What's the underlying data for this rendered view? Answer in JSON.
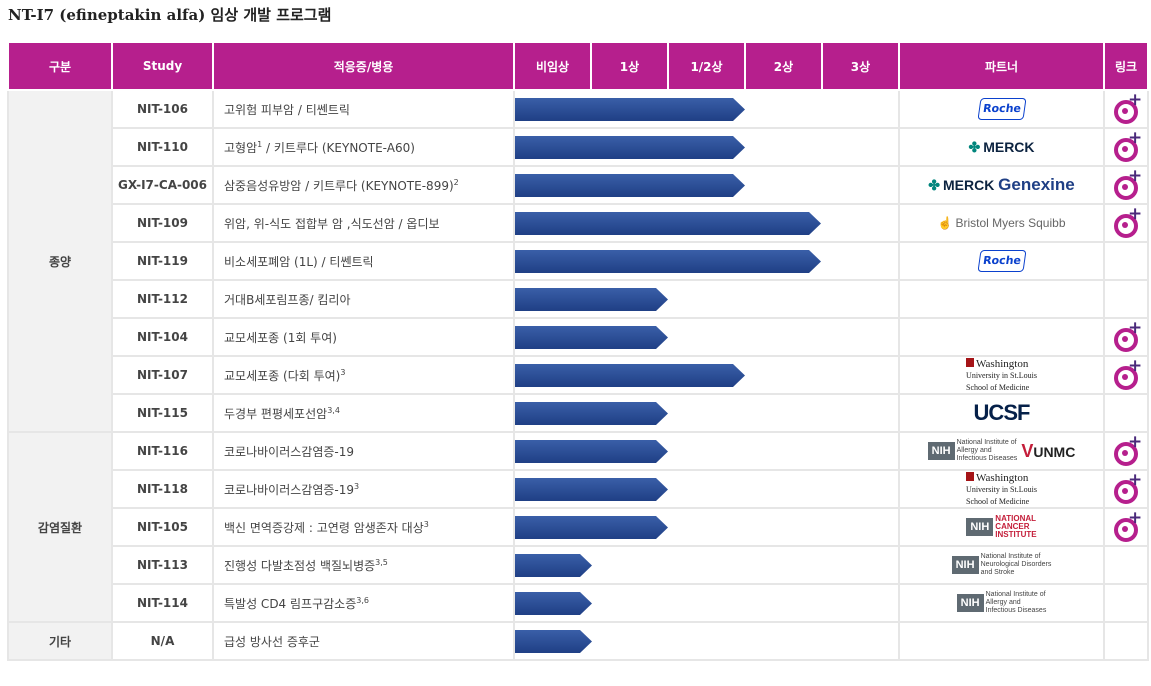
{
  "title": "NT-I7 (efineptakin alfa) 임상 개발 프로그램",
  "headers": {
    "category": "구분",
    "study": "Study",
    "indication": "적응증/병용",
    "p0": "비임상",
    "p1": "1상",
    "p12": "1/2상",
    "p2": "2상",
    "p3": "3상",
    "partner": "파트너",
    "link": "링크"
  },
  "categories": {
    "oncology": "종양",
    "infection": "감염질환",
    "other": "기타"
  },
  "rows": [
    {
      "study": "NIT-106",
      "ind": "고위험 피부암 / 티쎈트릭",
      "sup": "",
      "progress": 3.0
    },
    {
      "study": "NIT-110",
      "ind": "고형암",
      "ind2": " / 키트루다 (KEYNOTE-A60)",
      "sup": "1",
      "progress": 3.0
    },
    {
      "study": "GX-I7-CA-006",
      "ind": "삼중음성유방암 / 키트루다 (KEYNOTE-899)",
      "sup": "2",
      "progress": 3.0
    },
    {
      "study": "NIT-109",
      "ind": "위암, 위-식도 접합부 암 ,식도선암 / 옵디보",
      "sup": "",
      "progress": 4.0
    },
    {
      "study": "NIT-119",
      "ind": "비소세포폐암 (1L) / 티쎈트릭",
      "sup": "",
      "progress": 4.0
    },
    {
      "study": "NIT-112",
      "ind": "거대B세포림프종/ 킴리아",
      "sup": "",
      "progress": 2.0
    },
    {
      "study": "NIT-104",
      "ind": "교모세포종 (1회 투여)",
      "sup": "",
      "progress": 2.0
    },
    {
      "study": "NIT-107",
      "ind": "교모세포종 (다회 투여)",
      "sup": "3",
      "progress": 3.0
    },
    {
      "study": "NIT-115",
      "ind": "두경부 편평세포선암",
      "sup": "3,4",
      "progress": 2.0
    },
    {
      "study": "NIT-116",
      "ind": "코로나바이러스감염증-19",
      "sup": "",
      "progress": 2.0
    },
    {
      "study": "NIT-118",
      "ind": "코로나바이러스감염증-19",
      "sup": "3",
      "progress": 2.0
    },
    {
      "study": "NIT-105",
      "ind": "백신 면역증강제 : 고연령 암생존자 대상",
      "sup": "3",
      "progress": 2.0
    },
    {
      "study": "NIT-113",
      "ind": "진행성 다발초점성 백질뇌병증",
      "sup": "3,5",
      "progress": 1.0
    },
    {
      "study": "NIT-114",
      "ind": "특발성 CD4 림프구감소증",
      "sup": "3,6",
      "progress": 1.0
    },
    {
      "study": "N/A",
      "ind": "급성 방사선 증후군",
      "sup": "",
      "progress": 1.0
    }
  ],
  "logos": {
    "roche": "Roche",
    "merck": "MERCK",
    "genexine": "Genexine",
    "bms": "Bristol Myers Squibb",
    "wash1": "Washington",
    "wash2": "University in St.Louis",
    "wash3": "School of Medicine",
    "ucsf": "UCSF",
    "nih": "NIH",
    "niaid": "National Institute of\nAllergy and\nInfectious Diseases",
    "unmc": "UNMC",
    "nci": "NATIONAL\nCANCER\nINSTITUTE",
    "ninds": "National Institute of\nNeurological Disorders\nand Stroke"
  },
  "colors": {
    "header": "#b61f8d",
    "bar": "#1f3f85",
    "link_icon": "#b61f8d"
  },
  "link_icons": [
    true,
    true,
    true,
    true,
    false,
    false,
    true,
    true,
    false,
    true,
    true,
    true,
    false,
    false,
    false
  ]
}
